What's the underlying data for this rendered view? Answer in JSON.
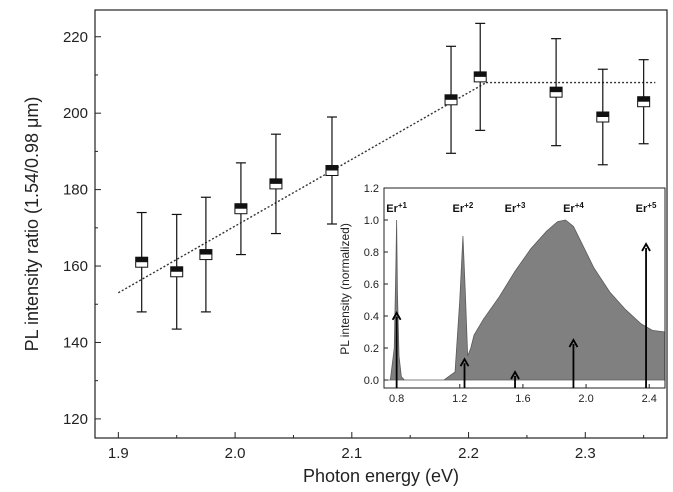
{
  "chart_data": [
    {
      "type": "scatter",
      "xlabel": "Photon energy (eV)",
      "ylabel": "PL intensity ratio (1.54/0.98 μm)",
      "xlim": [
        1.88,
        2.37
      ],
      "ylim": [
        115,
        227
      ],
      "xticks": [
        1.9,
        2.0,
        2.1,
        2.2,
        2.3
      ],
      "xtick_labels": [
        "1.9",
        "2.0",
        "2.1",
        "2.2",
        "2.3"
      ],
      "yticks": [
        120,
        140,
        160,
        180,
        200,
        220
      ],
      "ytick_labels": [
        "120",
        "140",
        "160",
        "180",
        "200",
        "220"
      ],
      "series": [
        {
          "x": [
            1.92,
            1.95,
            1.975,
            2.005,
            2.035,
            2.083,
            2.185,
            2.21,
            2.275,
            2.315,
            2.35
          ],
          "y": [
            161,
            158.5,
            163,
            175,
            181.5,
            185,
            203.5,
            209.5,
            205.5,
            199,
            203
          ],
          "yerr": [
            13,
            15,
            15,
            12,
            13,
            14,
            14,
            14,
            14,
            12.5,
            11
          ]
        }
      ],
      "fit_lines": [
        {
          "style": "dotted",
          "x": [
            1.9,
            2.215
          ],
          "y": [
            153,
            208
          ]
        },
        {
          "style": "dotted",
          "x": [
            2.215,
            2.36
          ],
          "y": [
            208,
            208
          ]
        }
      ],
      "grid": false
    },
    {
      "type": "area",
      "ylabel": "PL intensity (normalized)",
      "xlim": [
        0.72,
        2.5
      ],
      "ylim": [
        -0.05,
        1.2
      ],
      "xticks": [
        0.8,
        1.2,
        1.6,
        2.0,
        2.4
      ],
      "xtick_labels": [
        "0.8",
        "1.2",
        "1.6",
        "2.0",
        "2.4"
      ],
      "yticks": [
        0.0,
        0.2,
        0.4,
        0.6,
        0.8,
        1.0,
        1.2
      ],
      "ytick_labels": [
        "0.0",
        "0.2",
        "0.4",
        "0.6",
        "0.8",
        "1.0",
        "1.2"
      ],
      "spectrum": {
        "x": [
          0.72,
          0.76,
          0.785,
          0.795,
          0.8,
          0.805,
          0.815,
          0.83,
          0.85,
          0.9,
          1.1,
          1.17,
          1.2,
          1.22,
          1.235,
          1.25,
          1.27,
          1.29,
          1.35,
          1.45,
          1.55,
          1.65,
          1.75,
          1.82,
          1.87,
          1.92,
          1.98,
          2.05,
          2.15,
          2.25,
          2.35,
          2.42,
          2.5
        ],
        "y": [
          0.0,
          0.0,
          0.2,
          0.7,
          1.0,
          0.55,
          0.15,
          0.02,
          0.0,
          0.0,
          0.0,
          0.05,
          0.5,
          0.9,
          0.55,
          0.15,
          0.2,
          0.28,
          0.38,
          0.52,
          0.68,
          0.82,
          0.93,
          0.99,
          1.0,
          0.96,
          0.84,
          0.7,
          0.55,
          0.44,
          0.35,
          0.31,
          0.3
        ]
      },
      "arrows": [
        {
          "x": 0.8,
          "y": 0.42
        },
        {
          "x": 1.23,
          "y": 0.13
        },
        {
          "x": 1.55,
          "y": 0.05
        },
        {
          "x": 1.92,
          "y": 0.25
        },
        {
          "x": 2.38,
          "y": 0.85
        }
      ],
      "peak_labels": [
        {
          "text": "Er",
          "sup": "+1",
          "x": 0.8
        },
        {
          "text": "Er",
          "sup": "+2",
          "x": 1.22
        },
        {
          "text": "Er",
          "sup": "+3",
          "x": 1.55
        },
        {
          "text": "Er",
          "sup": "+4",
          "x": 1.92
        },
        {
          "text": "Er",
          "sup": "+5",
          "x": 2.38
        }
      ],
      "colors": {
        "fill": "#808080",
        "stroke": "#5a5a5a",
        "arrow": "#000000"
      }
    }
  ]
}
